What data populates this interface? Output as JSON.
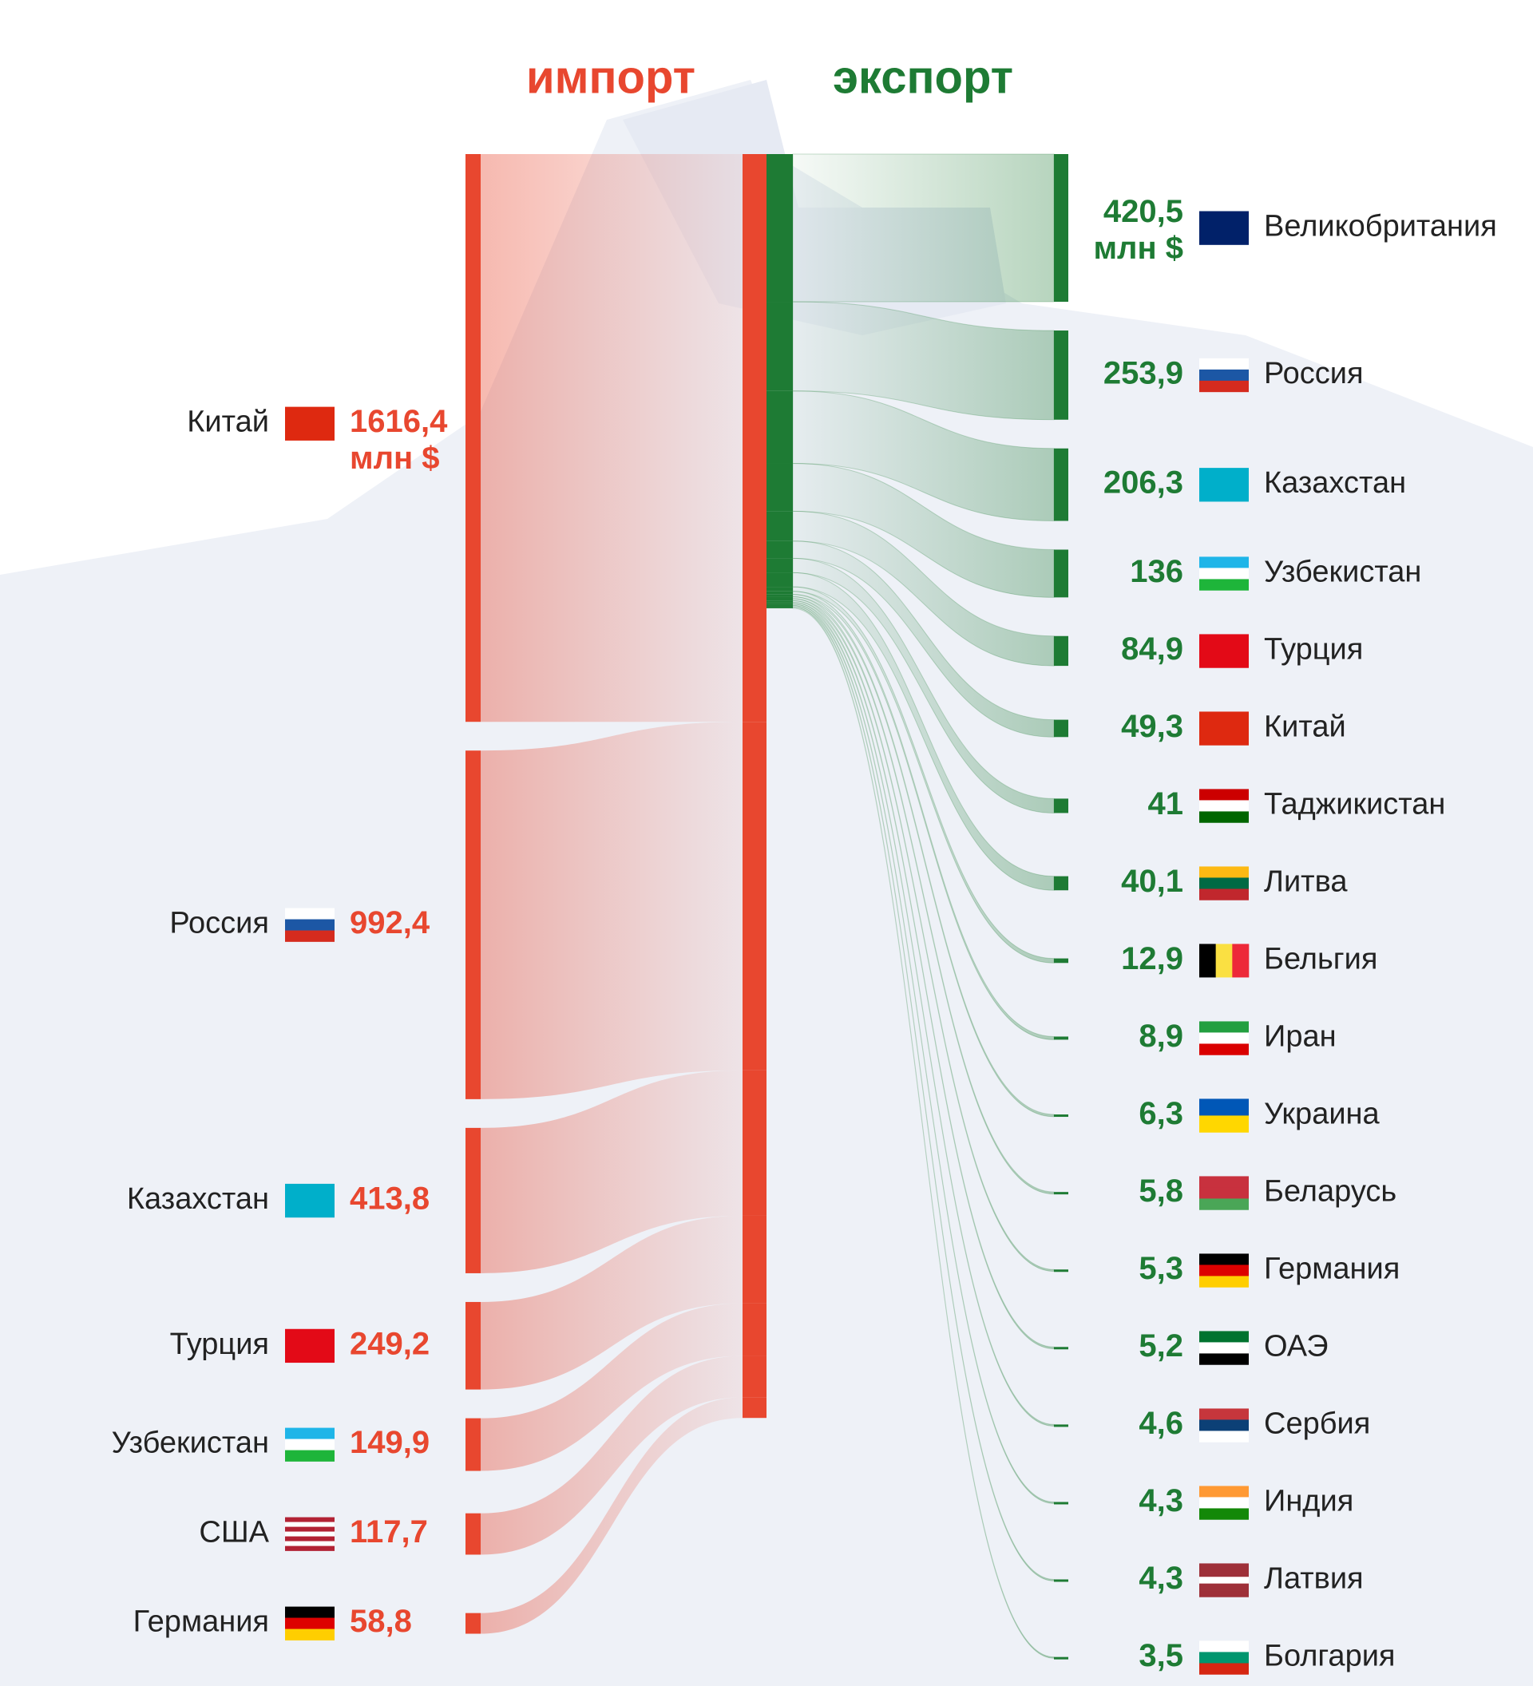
{
  "chart_data": {
    "type": "sankey",
    "unit": "млн $",
    "import": {
      "title": "импорт",
      "color": "#e8472f",
      "categories": [
        "Китай",
        "Россия",
        "Казахстан",
        "Турция",
        "Узбекистан",
        "США",
        "Германия"
      ],
      "values": [
        1616.4,
        992.4,
        413.8,
        249.2,
        149.9,
        117.7,
        58.8
      ],
      "value_labels": [
        "1616,4",
        "992,4",
        "413,8",
        "249,2",
        "149,9",
        "117,7",
        "58,8"
      ]
    },
    "export": {
      "title": "экспорт",
      "color": "#1e7b34",
      "categories": [
        "Великобритания",
        "Россия",
        "Казахстан",
        "Узбекистан",
        "Турция",
        "Китай",
        "Таджикистан",
        "Литва",
        "Бельгия",
        "Иран",
        "Украина",
        "Беларусь",
        "Германия",
        "ОАЭ",
        "Сербия",
        "Индия",
        "Латвия",
        "Болгария"
      ],
      "values": [
        420.5,
        253.9,
        206.3,
        136,
        84.9,
        49.3,
        41,
        40.1,
        12.9,
        8.9,
        6.3,
        5.8,
        5.3,
        5.2,
        4.6,
        4.3,
        4.3,
        3.5
      ],
      "value_labels": [
        "420,5",
        "253,9",
        "206,3",
        "136",
        "84,9",
        "49,3",
        "41",
        "40,1",
        "12,9",
        "8,9",
        "6,3",
        "5,8",
        "5,3",
        "5,2",
        "4,6",
        "4,3",
        "4,3",
        "3,5"
      ]
    }
  }
}
